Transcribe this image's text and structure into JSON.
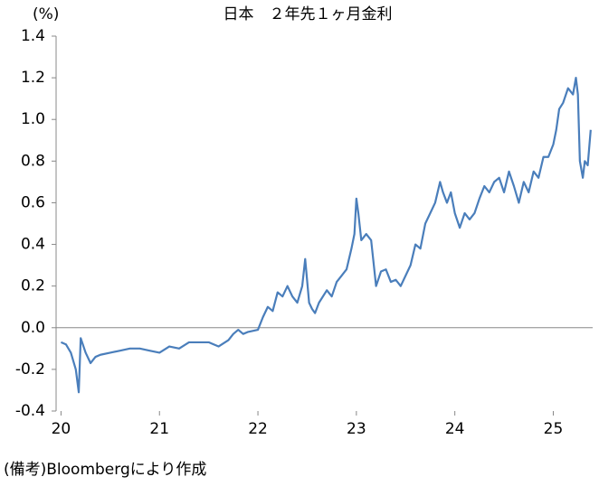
{
  "chart_data": {
    "type": "line",
    "title": "日本　２年先１ヶ月金利",
    "y_unit": "(%)",
    "note": "(備考)Bloombergにより作成",
    "x": [
      20.0,
      20.05,
      20.1,
      20.15,
      20.18,
      20.2,
      20.25,
      20.3,
      20.35,
      20.4,
      20.5,
      20.6,
      20.7,
      20.8,
      20.9,
      21.0,
      21.1,
      21.2,
      21.3,
      21.4,
      21.5,
      21.6,
      21.7,
      21.75,
      21.8,
      21.85,
      21.9,
      22.0,
      22.05,
      22.1,
      22.15,
      22.2,
      22.25,
      22.3,
      22.35,
      22.4,
      22.45,
      22.48,
      22.52,
      22.55,
      22.58,
      22.62,
      22.7,
      22.75,
      22.8,
      22.85,
      22.9,
      22.95,
      22.98,
      23.0,
      23.02,
      23.05,
      23.1,
      23.15,
      23.2,
      23.25,
      23.3,
      23.35,
      23.4,
      23.45,
      23.5,
      23.55,
      23.6,
      23.65,
      23.7,
      23.75,
      23.8,
      23.85,
      23.88,
      23.92,
      23.96,
      24.0,
      24.05,
      24.1,
      24.15,
      24.2,
      24.25,
      24.3,
      24.35,
      24.4,
      24.45,
      24.5,
      24.55,
      24.6,
      24.65,
      24.7,
      24.75,
      24.8,
      24.85,
      24.9,
      24.95,
      25.0,
      25.03,
      25.06,
      25.1,
      25.15,
      25.2,
      25.23,
      25.25,
      25.27,
      25.3,
      25.32,
      25.35,
      25.38
    ],
    "series": [
      {
        "name": "２年先１ヶ月金利",
        "color": "#4a7ebb",
        "values": [
          -0.07,
          -0.08,
          -0.12,
          -0.2,
          -0.31,
          -0.05,
          -0.12,
          -0.17,
          -0.14,
          -0.13,
          -0.12,
          -0.11,
          -0.1,
          -0.1,
          -0.11,
          -0.12,
          -0.09,
          -0.1,
          -0.07,
          -0.07,
          -0.07,
          -0.09,
          -0.06,
          -0.03,
          -0.01,
          -0.03,
          -0.02,
          -0.01,
          0.05,
          0.1,
          0.08,
          0.17,
          0.15,
          0.2,
          0.15,
          0.12,
          0.2,
          0.33,
          0.12,
          0.09,
          0.07,
          0.12,
          0.18,
          0.15,
          0.22,
          0.25,
          0.28,
          0.38,
          0.45,
          0.62,
          0.55,
          0.42,
          0.45,
          0.42,
          0.2,
          0.27,
          0.28,
          0.22,
          0.23,
          0.2,
          0.25,
          0.3,
          0.4,
          0.38,
          0.5,
          0.55,
          0.6,
          0.7,
          0.65,
          0.6,
          0.65,
          0.55,
          0.48,
          0.55,
          0.52,
          0.55,
          0.62,
          0.68,
          0.65,
          0.7,
          0.72,
          0.65,
          0.75,
          0.68,
          0.6,
          0.7,
          0.65,
          0.75,
          0.72,
          0.82,
          0.82,
          0.88,
          0.95,
          1.05,
          1.08,
          1.15,
          1.12,
          1.2,
          1.12,
          0.8,
          0.72,
          0.8,
          0.78,
          0.95
        ]
      }
    ],
    "xlim": [
      19.95,
      25.4
    ],
    "xticks": [
      20,
      21,
      22,
      23,
      24,
      25
    ],
    "ylim": [
      -0.4,
      1.4
    ],
    "yticks": [
      -0.4,
      -0.2,
      {
        "value": 0,
        "label": "0.0"
      },
      0.2,
      0.4,
      0.6,
      0.8,
      {
        "value": 1,
        "label": "1.0"
      },
      1.2,
      1.4
    ]
  }
}
